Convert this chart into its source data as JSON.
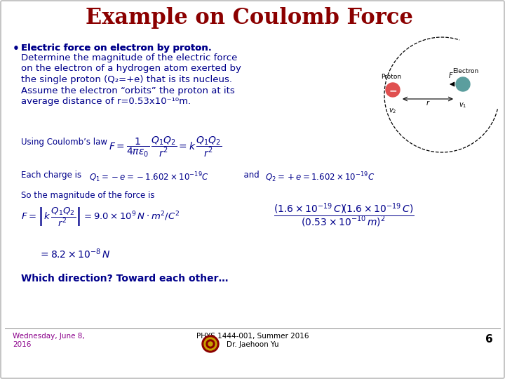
{
  "title": "Example on Coulomb Force",
  "title_color": "#8B0000",
  "background_color": "#FFFFFF",
  "bullet_color": "#00008B",
  "footer_date": "Wednesday, June 8,\n2016",
  "footer_course": "PHYS 1444-001, Summer 2016\nDr. Jaehoon Yu",
  "footer_page": "6",
  "footer_color": "#8B008B"
}
